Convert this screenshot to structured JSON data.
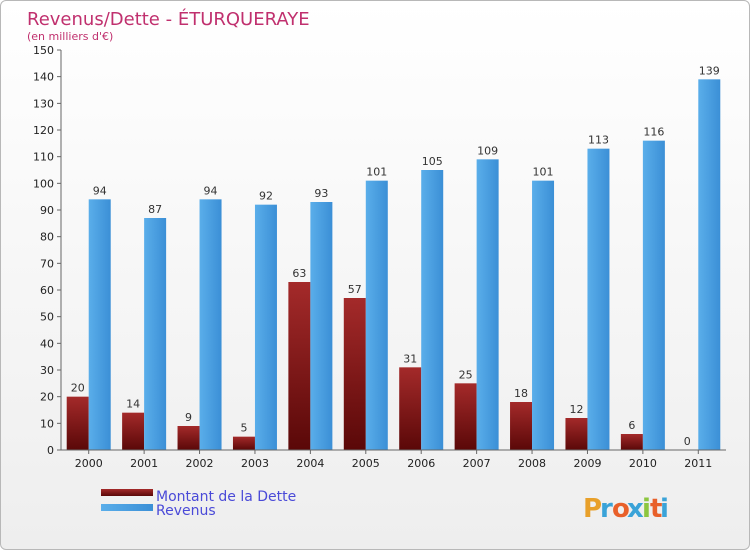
{
  "chart_data": {
    "type": "bar",
    "title": "Revenus/Dette - ÉTURQUERAYE",
    "subtitle": "(en milliers d'€)",
    "categories": [
      "2000",
      "2001",
      "2002",
      "2003",
      "2004",
      "2005",
      "2006",
      "2007",
      "2008",
      "2009",
      "2010",
      "2011"
    ],
    "series": [
      {
        "name": "Montant de la Dette",
        "color": "#8b1a1a",
        "values": [
          20,
          14,
          9,
          5,
          63,
          57,
          31,
          25,
          18,
          12,
          6,
          0
        ]
      },
      {
        "name": "Revenus",
        "color": "#4da3e6",
        "values": [
          94,
          87,
          94,
          92,
          93,
          101,
          105,
          109,
          101,
          113,
          116,
          139
        ]
      }
    ],
    "ylim": [
      0,
      150
    ],
    "yticks": [
      0,
      10,
      20,
      30,
      40,
      50,
      60,
      70,
      80,
      90,
      100,
      110,
      120,
      130,
      140,
      150
    ],
    "grid": false,
    "legend": "bottom-left",
    "xlabel": "",
    "ylabel": ""
  },
  "brand": {
    "letters": [
      "P",
      "r",
      "o",
      "x",
      "i",
      "t",
      "i"
    ],
    "colors": [
      "#e8a02a",
      "#3aa3d8",
      "#e8602a",
      "#3aa3d8",
      "#8cc63f",
      "#e8602a",
      "#3aa3d8"
    ]
  }
}
